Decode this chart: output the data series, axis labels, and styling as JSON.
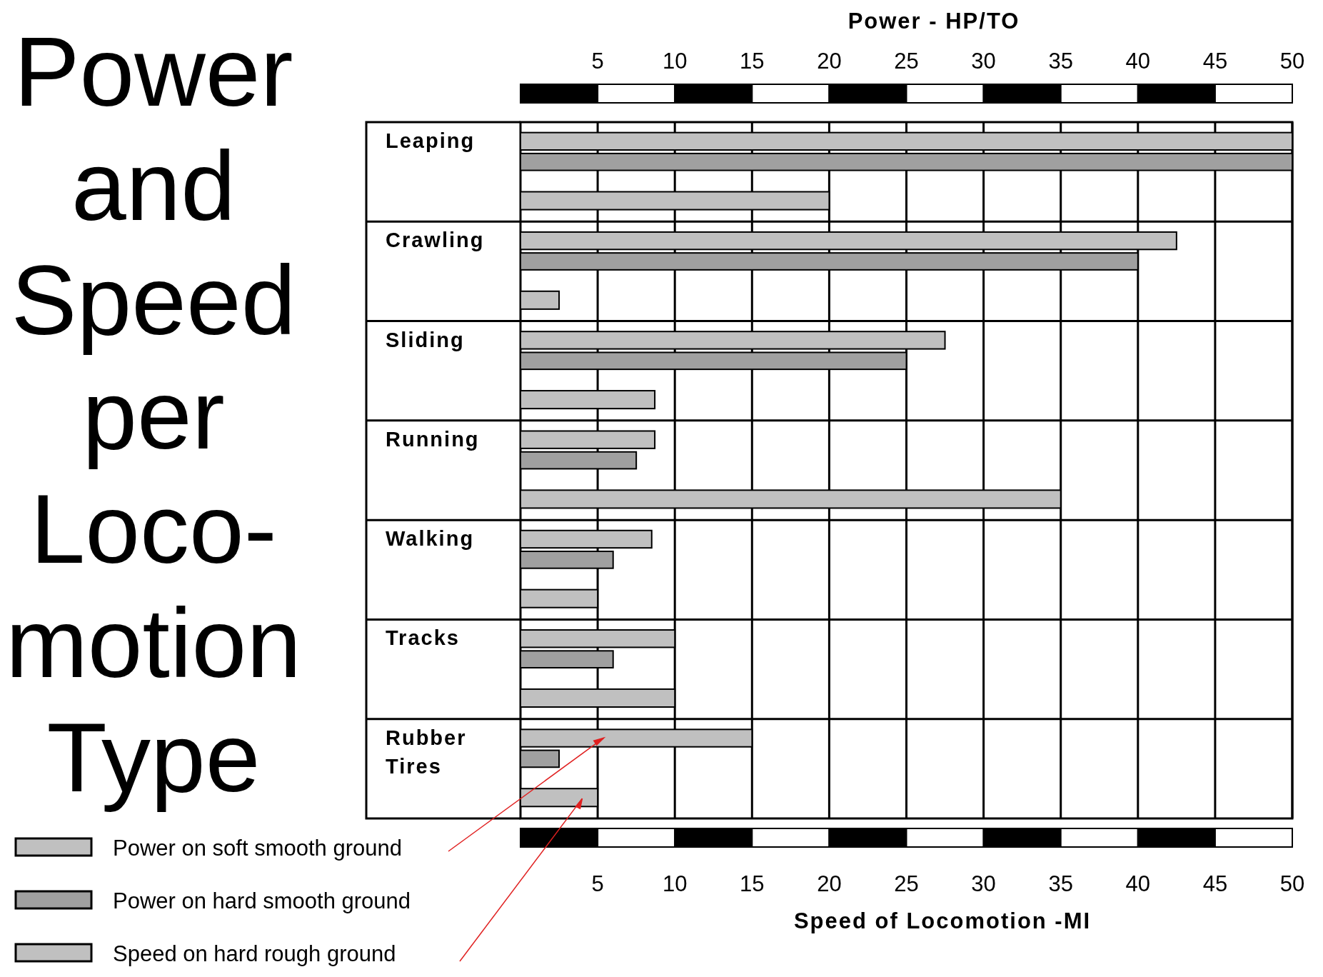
{
  "chart_data": {
    "type": "bar",
    "orientation": "horizontal",
    "title": "Power and Speed per Loco-motion Type",
    "x2label": "Power - HP/TO",
    "xlabel": "Speed of Locomotion -MI",
    "categories": [
      "Leaping",
      "Crawling",
      "Sliding",
      "Running",
      "Walking",
      "Tracks",
      "Rubber Tires"
    ],
    "xlim": [
      0,
      50
    ],
    "xticks": [
      5,
      10,
      15,
      20,
      25,
      30,
      35,
      40,
      45,
      50
    ],
    "x2lim": [
      0,
      50
    ],
    "x2ticks": [
      5,
      10,
      15,
      20,
      25,
      30,
      35,
      40,
      45,
      50
    ],
    "grid": "x",
    "legend": "bottom left",
    "series": [
      {
        "name": "Power on soft smooth ground",
        "color": "#c0c0c0",
        "values": [
          50,
          42.5,
          27.5,
          8.7,
          8.5,
          10,
          15
        ]
      },
      {
        "name": "Power on hard smooth ground",
        "color": "#a0a0a0",
        "values": [
          50,
          40,
          25,
          7.5,
          6,
          6,
          2.5
        ]
      },
      {
        "name": "Speed on hard rough ground",
        "color": "#c0c0c0",
        "values": [
          20,
          2.5,
          8.7,
          35,
          5,
          10,
          5
        ]
      }
    ]
  }
}
